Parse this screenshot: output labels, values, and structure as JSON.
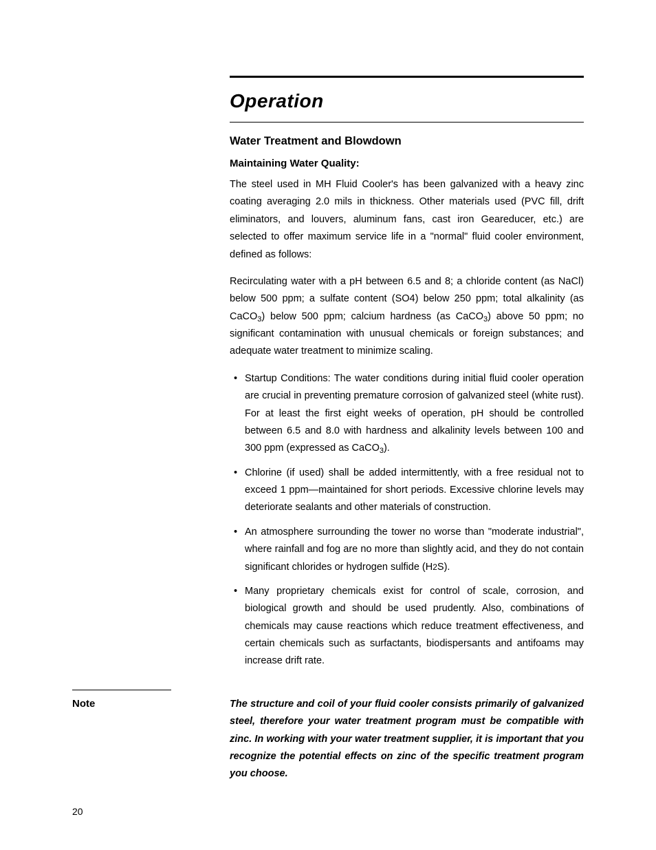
{
  "section": {
    "title": "Operation",
    "subsection_title": "Water Treatment and Blowdown",
    "subsection_subtitle": "Maintaining Water Quality:",
    "para1": "The steel used in MH Fluid Cooler's has been galvanized with a heavy zinc coating averaging 2.0 mils in thickness. Other materials used (PVC fill, drift eliminators, and louvers, aluminum fans, cast iron Geareducer, etc.) are selected to offer maximum service life in a \"normal\" fluid cooler environment, defined as follows:",
    "para2_pre": "Recirculating water with a pH between 6.5 and 8; a chloride content (as NaCl) below 500 ppm; a sulfate content (SO4) below 250 ppm; total alkalinity (as CaCO",
    "para2_sub1": "3",
    "para2_mid": ") below 500 ppm; calcium hardness (as CaCO",
    "para2_sub2": "3",
    "para2_post": ") above 50 ppm; no significant contamination with unusual chemicals or foreign substances; and adequate water treatment to minimize scaling.",
    "bullets": [
      {
        "pre": "Startup Conditions: The water conditions during initial fluid cooler operation are crucial in preventing premature corrosion of galvanized steel (white rust). For at least the first eight weeks of operation, pH should be controlled between 6.5 and 8.0 with hardness and alkalinity levels between 100 and 300 ppm (expressed as CaCO",
        "sub": "3",
        "post": ")."
      },
      {
        "pre": "Chlorine (if used) shall be added intermittently, with a free residual not to exceed 1 ppm—maintained for short periods. Excessive chlorine levels may deteriorate sealants and other materials of construction.",
        "sub": "",
        "post": ""
      },
      {
        "pre": "An atmosphere surrounding the tower no worse than \"moderate industrial\", where rainfall and fog are no more than slightly acid, and they do not contain significant chlorides or hydrogen sulfide (H",
        "sub": "",
        "smallnum": "2",
        "post": "S)."
      },
      {
        "pre": "Many proprietary chemicals exist for control of scale, corrosion, and biological growth and should be used prudently. Also, combinations of chemicals may cause reactions which reduce treatment effectiveness, and certain chemicals such as surfactants, biodispersants and antifoams may increase drift rate.",
        "sub": "",
        "post": ""
      }
    ]
  },
  "note": {
    "label": "Note",
    "body": "The structure and coil of your fluid cooler consists primarily of galvanized steel, therefore your water treatment program must be compatible with zinc. In working with your water treatment supplier, it is important that you recognize the potential effects on zinc of the specific treatment program you choose."
  },
  "page_number": "20"
}
